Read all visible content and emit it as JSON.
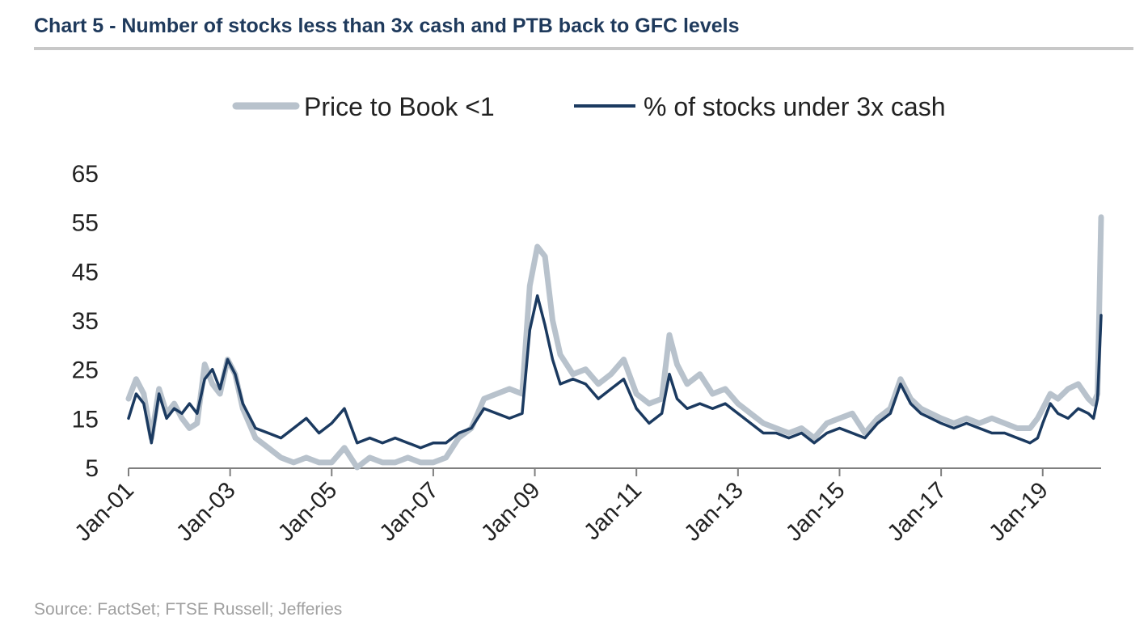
{
  "header": {
    "title": "Chart 5 - Number of stocks less than 3x cash and PTB back to GFC levels"
  },
  "footer": {
    "source": "Source: FactSet; FTSE Russell; Jefferies"
  },
  "colors": {
    "ptb": "#b8c2cc",
    "cash": "#1b3a60",
    "axis": "#7f7f7f",
    "title": "#1f3a5c"
  },
  "chart_data": {
    "type": "line",
    "title": "Chart 5 - Number of stocks less than 3x cash and PTB back to GFC levels",
    "xlabel": "",
    "ylabel": "",
    "x_range": [
      2001.0,
      2020.15
    ],
    "ylim": [
      5,
      65
    ],
    "y_ticks": [
      5,
      15,
      25,
      35,
      45,
      55,
      65
    ],
    "x_tick_labels": [
      "Jan-01",
      "Jan-03",
      "Jan-05",
      "Jan-07",
      "Jan-09",
      "Jan-11",
      "Jan-13",
      "Jan-15",
      "Jan-17",
      "Jan-19"
    ],
    "x_tick_positions": [
      2001,
      2003,
      2005,
      2007,
      2009,
      2011,
      2013,
      2015,
      2017,
      2019
    ],
    "legend": "top-center",
    "grid": false,
    "series": [
      {
        "name": "Price to Book <1",
        "x": [
          2001.0,
          2001.15,
          2001.3,
          2001.45,
          2001.6,
          2001.75,
          2001.9,
          2002.05,
          2002.2,
          2002.35,
          2002.5,
          2002.65,
          2002.8,
          2002.95,
          2003.1,
          2003.25,
          2003.5,
          2003.75,
          2004.0,
          2004.25,
          2004.5,
          2004.75,
          2005.0,
          2005.25,
          2005.5,
          2005.75,
          2006.0,
          2006.25,
          2006.5,
          2006.75,
          2007.0,
          2007.25,
          2007.5,
          2007.75,
          2008.0,
          2008.25,
          2008.5,
          2008.75,
          2008.9,
          2009.05,
          2009.2,
          2009.35,
          2009.5,
          2009.75,
          2010.0,
          2010.25,
          2010.5,
          2010.75,
          2011.0,
          2011.25,
          2011.5,
          2011.65,
          2011.8,
          2012.0,
          2012.25,
          2012.5,
          2012.75,
          2013.0,
          2013.25,
          2013.5,
          2013.75,
          2014.0,
          2014.25,
          2014.5,
          2014.75,
          2015.0,
          2015.25,
          2015.5,
          2015.75,
          2016.0,
          2016.2,
          2016.4,
          2016.6,
          2016.8,
          2017.0,
          2017.25,
          2017.5,
          2017.75,
          2018.0,
          2018.25,
          2018.5,
          2018.75,
          2018.9,
          2019.0,
          2019.15,
          2019.3,
          2019.5,
          2019.7,
          2019.9,
          2020.0,
          2020.08,
          2020.15
        ],
        "values": [
          19,
          23,
          20,
          11,
          21,
          16,
          18,
          15,
          13,
          14,
          26,
          22,
          20,
          27,
          24,
          17,
          11,
          9,
          7,
          6,
          7,
          6,
          6,
          9,
          5,
          7,
          6,
          6,
          7,
          6,
          6,
          7,
          11,
          13,
          19,
          20,
          21,
          20,
          42,
          50,
          48,
          35,
          28,
          24,
          25,
          22,
          24,
          27,
          20,
          18,
          19,
          32,
          26,
          22,
          24,
          20,
          21,
          18,
          16,
          14,
          13,
          12,
          13,
          11,
          14,
          15,
          16,
          12,
          15,
          17,
          23,
          19,
          17,
          16,
          15,
          14,
          15,
          14,
          15,
          14,
          13,
          13,
          15,
          17,
          20,
          19,
          21,
          22,
          19,
          18,
          20,
          56
        ]
      },
      {
        "name": "% of stocks under 3x cash",
        "x": [
          2001.0,
          2001.15,
          2001.3,
          2001.45,
          2001.6,
          2001.75,
          2001.9,
          2002.05,
          2002.2,
          2002.35,
          2002.5,
          2002.65,
          2002.8,
          2002.95,
          2003.1,
          2003.25,
          2003.5,
          2003.75,
          2004.0,
          2004.25,
          2004.5,
          2004.75,
          2005.0,
          2005.25,
          2005.5,
          2005.75,
          2006.0,
          2006.25,
          2006.5,
          2006.75,
          2007.0,
          2007.25,
          2007.5,
          2007.75,
          2008.0,
          2008.25,
          2008.5,
          2008.75,
          2008.9,
          2009.05,
          2009.2,
          2009.35,
          2009.5,
          2009.75,
          2010.0,
          2010.25,
          2010.5,
          2010.75,
          2011.0,
          2011.25,
          2011.5,
          2011.65,
          2011.8,
          2012.0,
          2012.25,
          2012.5,
          2012.75,
          2013.0,
          2013.25,
          2013.5,
          2013.75,
          2014.0,
          2014.25,
          2014.5,
          2014.75,
          2015.0,
          2015.25,
          2015.5,
          2015.75,
          2016.0,
          2016.2,
          2016.4,
          2016.6,
          2016.8,
          2017.0,
          2017.25,
          2017.5,
          2017.75,
          2018.0,
          2018.25,
          2018.5,
          2018.75,
          2018.9,
          2019.0,
          2019.15,
          2019.3,
          2019.5,
          2019.7,
          2019.9,
          2020.0,
          2020.08,
          2020.15
        ],
        "values": [
          15,
          20,
          18,
          10,
          20,
          15,
          17,
          16,
          18,
          16,
          23,
          25,
          21,
          27,
          24,
          18,
          13,
          12,
          11,
          13,
          15,
          12,
          14,
          17,
          10,
          11,
          10,
          11,
          10,
          9,
          10,
          10,
          12,
          13,
          17,
          16,
          15,
          16,
          33,
          40,
          34,
          27,
          22,
          23,
          22,
          19,
          21,
          23,
          17,
          14,
          16,
          24,
          19,
          17,
          18,
          17,
          18,
          16,
          14,
          12,
          12,
          11,
          12,
          10,
          12,
          13,
          12,
          11,
          14,
          16,
          22,
          18,
          16,
          15,
          14,
          13,
          14,
          13,
          12,
          12,
          11,
          10,
          11,
          14,
          18,
          16,
          15,
          17,
          16,
          15,
          19,
          36
        ]
      }
    ]
  }
}
